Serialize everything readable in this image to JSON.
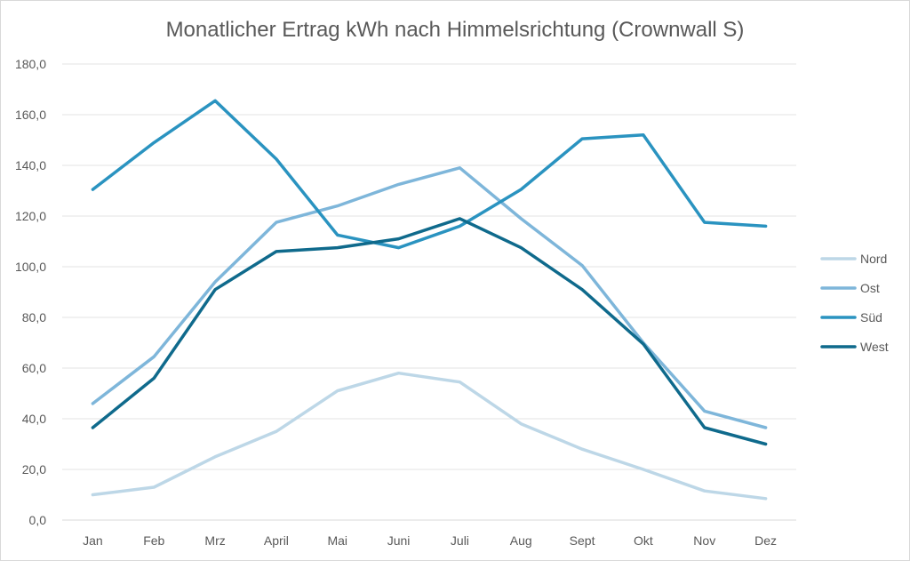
{
  "chart_data": {
    "type": "line",
    "title": "Monatlicher Ertrag kWh nach Himmelsrichtung (Crownwall S)",
    "xlabel": "",
    "ylabel": "",
    "ylim": [
      0,
      180
    ],
    "yticks": [
      0,
      20,
      40,
      60,
      80,
      100,
      120,
      140,
      160,
      180
    ],
    "ytick_labels": [
      "0,0",
      "20,0",
      "40,0",
      "60,0",
      "80,0",
      "100,0",
      "120,0",
      "140,0",
      "160,0",
      "180,0"
    ],
    "grid": true,
    "legend_position": "right",
    "categories": [
      "Jan",
      "Feb",
      "Mrz",
      "April",
      "Mai",
      "Juni",
      "Juli",
      "Aug",
      "Sept",
      "Okt",
      "Nov",
      "Dez"
    ],
    "series": [
      {
        "name": "Nord",
        "color": "#bdd7e7",
        "values": [
          10,
          13,
          25,
          35,
          51,
          58,
          54.5,
          38,
          28,
          20,
          11.5,
          8.5
        ]
      },
      {
        "name": "Ost",
        "color": "#7eb6da",
        "values": [
          46,
          64.5,
          94,
          117.5,
          124,
          132.5,
          139,
          119,
          100.5,
          70,
          43,
          36.5
        ]
      },
      {
        "name": "Süd",
        "color": "#2a93c0",
        "values": [
          130.5,
          149,
          165.5,
          142.5,
          112.5,
          107.5,
          116,
          130.5,
          150.5,
          152,
          117.5,
          116
        ]
      },
      {
        "name": "West",
        "color": "#0f6a8c",
        "values": [
          36.5,
          56,
          91,
          106,
          107.5,
          111,
          119,
          107.5,
          91,
          69.5,
          36.5,
          30
        ]
      }
    ]
  }
}
